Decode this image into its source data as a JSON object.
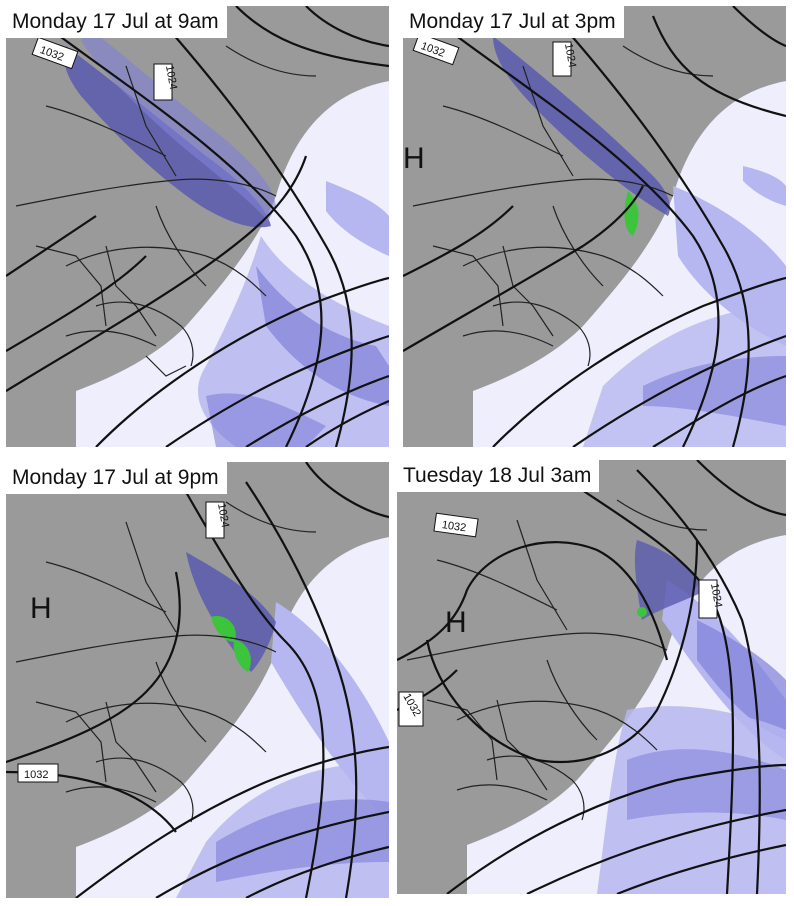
{
  "panels": [
    {
      "title": "Monday 17 Jul at 9am",
      "isobar_labels": [
        "1032",
        "1024"
      ],
      "high_marker": ""
    },
    {
      "title": "Monday 17 Jul at 3pm",
      "isobar_labels": [
        "1032",
        "1024"
      ],
      "high_marker": "H"
    },
    {
      "title": "Monday 17 Jul at 9pm",
      "isobar_labels": [
        "1024",
        "1032"
      ],
      "high_marker": "H"
    },
    {
      "title": "Tuesday 18 Jul 3am",
      "isobar_labels": [
        "1032",
        "1024",
        "1032"
      ],
      "high_marker": "H"
    }
  ],
  "colors": {
    "land": "#9a9a9a",
    "ocean": "#eeeefc",
    "precip_light": "#b6b6f0",
    "precip_medium": "#8080d8",
    "precip_heavy": "#5a5ab0",
    "precip_intense": "#3cc43c",
    "isobar": "#111111",
    "border": "#222222"
  }
}
